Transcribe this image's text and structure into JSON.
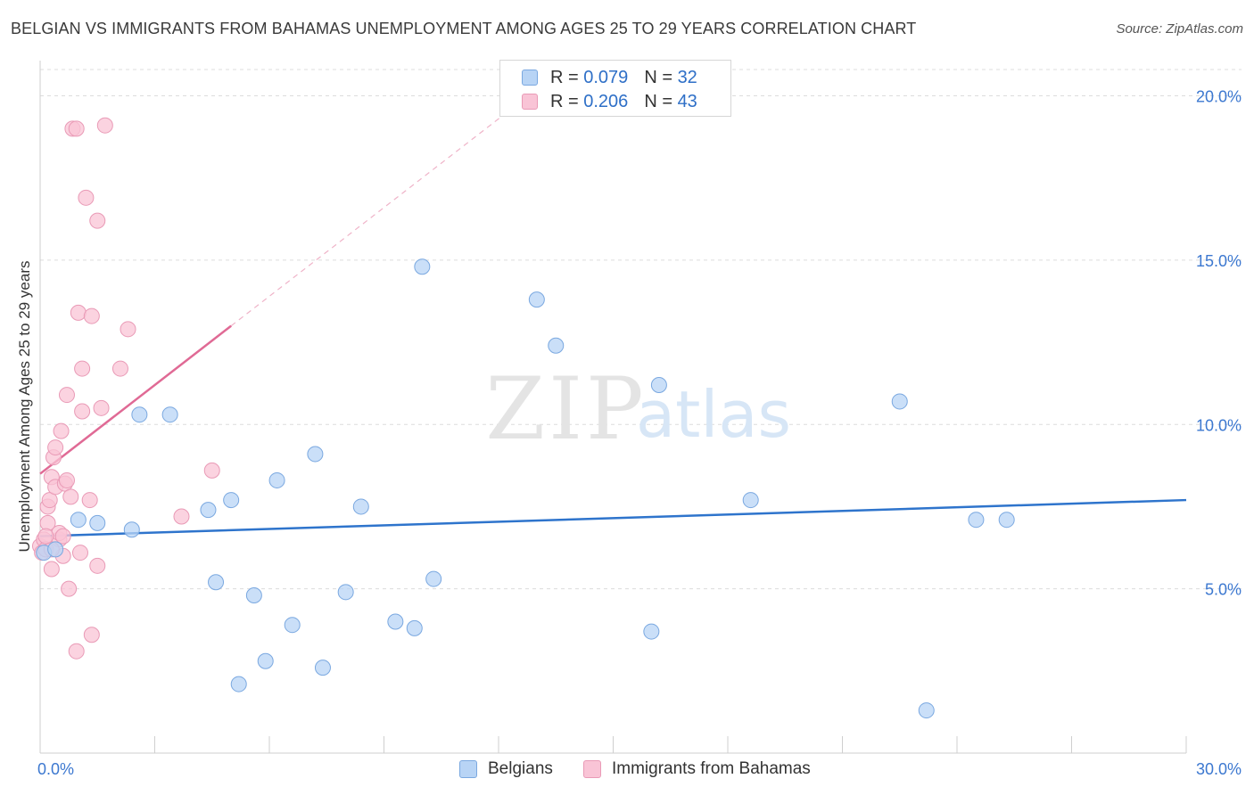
{
  "header": {
    "title": "BELGIAN VS IMMIGRANTS FROM BAHAMAS UNEMPLOYMENT AMONG AGES 25 TO 29 YEARS CORRELATION CHART",
    "source": "Source: ZipAtlas.com"
  },
  "watermark": {
    "zip": "ZIP",
    "atlas": "atlas"
  },
  "legend": {
    "rows": [
      {
        "r_label": "R = ",
        "r_value": "0.079",
        "n_label": "N = ",
        "n_value": "32"
      },
      {
        "r_label": "R = ",
        "r_value": "0.206",
        "n_label": "N = ",
        "n_value": "43"
      }
    ]
  },
  "colors": {
    "blue_fill": "#b8d4f5",
    "blue_stroke": "#7aa8e0",
    "blue_line": "#2e74cc",
    "pink_fill": "#f9c4d6",
    "pink_stroke": "#e99ab6",
    "pink_line": "#e06a95",
    "grid": "#dcdcdc",
    "tick_label": "#3c78d0"
  },
  "chart_data": {
    "type": "scatter",
    "title": "BELGIAN VS IMMIGRANTS FROM BAHAMAS UNEMPLOYMENT AMONG AGES 25 TO 29 YEARS CORRELATION CHART",
    "xlabel": "",
    "ylabel": "Unemployment Among Ages 25 to 29 years",
    "xlim": [
      0,
      30
    ],
    "ylim": [
      0,
      20.8
    ],
    "x_tick_labels": [
      "0.0%",
      "30.0%"
    ],
    "y_ticks": [
      5,
      10,
      15,
      20
    ],
    "y_tick_labels": [
      "5.0%",
      "10.0%",
      "15.0%",
      "20.0%"
    ],
    "grid": true,
    "series": [
      {
        "name": "Belgians",
        "r": 0.079,
        "n": 32,
        "trend": {
          "x": [
            0,
            30
          ],
          "y": [
            6.6,
            7.7
          ]
        },
        "points": [
          [
            0.1,
            6.1
          ],
          [
            0.4,
            6.2
          ],
          [
            1.0,
            7.1
          ],
          [
            1.5,
            7.0
          ],
          [
            2.4,
            6.8
          ],
          [
            2.6,
            10.3
          ],
          [
            3.4,
            10.3
          ],
          [
            4.4,
            7.4
          ],
          [
            5.0,
            7.7
          ],
          [
            4.6,
            5.2
          ],
          [
            5.2,
            2.1
          ],
          [
            5.6,
            4.8
          ],
          [
            5.9,
            2.8
          ],
          [
            6.2,
            8.3
          ],
          [
            6.6,
            3.9
          ],
          [
            7.2,
            9.1
          ],
          [
            7.4,
            2.6
          ],
          [
            8.0,
            4.9
          ],
          [
            8.4,
            7.5
          ],
          [
            9.3,
            4.0
          ],
          [
            9.8,
            3.8
          ],
          [
            10.0,
            14.8
          ],
          [
            10.3,
            5.3
          ],
          [
            13.0,
            13.8
          ],
          [
            13.5,
            12.4
          ],
          [
            16.0,
            3.7
          ],
          [
            16.2,
            11.2
          ],
          [
            18.6,
            7.7
          ],
          [
            22.5,
            10.7
          ],
          [
            23.2,
            1.3
          ],
          [
            24.5,
            7.1
          ],
          [
            25.3,
            7.1
          ]
        ]
      },
      {
        "name": "Immigrants from Bahamas",
        "r": 0.206,
        "n": 43,
        "trend": {
          "x": [
            0,
            5.0
          ],
          "y": [
            8.5,
            13.0
          ]
        },
        "trend_extension": {
          "x": [
            5.0,
            13.0
          ],
          "y": [
            13.0,
            20.2
          ]
        },
        "points": [
          [
            0.0,
            6.3
          ],
          [
            0.05,
            6.1
          ],
          [
            0.1,
            6.5
          ],
          [
            0.15,
            6.2
          ],
          [
            0.2,
            7.0
          ],
          [
            0.2,
            7.5
          ],
          [
            0.25,
            7.7
          ],
          [
            0.3,
            5.6
          ],
          [
            0.3,
            8.4
          ],
          [
            0.35,
            9.0
          ],
          [
            0.4,
            8.1
          ],
          [
            0.4,
            9.3
          ],
          [
            0.5,
            6.5
          ],
          [
            0.5,
            6.7
          ],
          [
            0.55,
            9.8
          ],
          [
            0.6,
            6.0
          ],
          [
            0.65,
            8.2
          ],
          [
            0.7,
            10.9
          ],
          [
            0.7,
            8.3
          ],
          [
            0.75,
            5.0
          ],
          [
            0.8,
            7.8
          ],
          [
            0.85,
            19.0
          ],
          [
            0.95,
            19.0
          ],
          [
            0.95,
            3.1
          ],
          [
            1.0,
            13.4
          ],
          [
            1.05,
            6.1
          ],
          [
            1.1,
            10.4
          ],
          [
            1.1,
            11.7
          ],
          [
            1.2,
            16.9
          ],
          [
            1.3,
            7.7
          ],
          [
            1.35,
            13.3
          ],
          [
            1.35,
            3.6
          ],
          [
            1.5,
            16.2
          ],
          [
            1.5,
            5.7
          ],
          [
            1.6,
            10.5
          ],
          [
            1.7,
            19.1
          ],
          [
            2.1,
            11.7
          ],
          [
            2.3,
            12.9
          ],
          [
            3.7,
            7.2
          ],
          [
            4.5,
            8.6
          ],
          [
            0.3,
            6.2
          ],
          [
            0.15,
            6.6
          ],
          [
            0.6,
            6.6
          ]
        ]
      }
    ],
    "legend_position": "top-center"
  }
}
